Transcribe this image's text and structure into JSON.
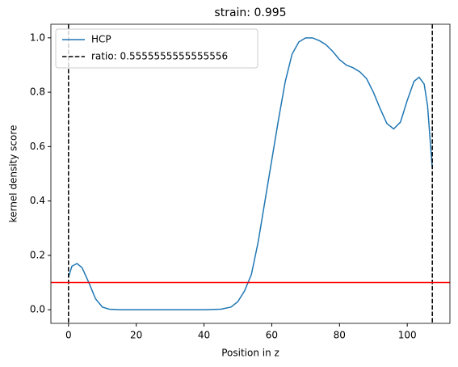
{
  "chart_data": {
    "type": "line",
    "title": "strain: 0.995",
    "x_label": "Position in z",
    "y_label": "kernel density score",
    "x": [
      0,
      1,
      2.5,
      4,
      6,
      8,
      10,
      12,
      15,
      20,
      30,
      40,
      45,
      48,
      50,
      52,
      54,
      56,
      58,
      60,
      62,
      64,
      66,
      68,
      70,
      72,
      74,
      76,
      78,
      80,
      82,
      84,
      86,
      88,
      90,
      92,
      94,
      96,
      98,
      100,
      102,
      103.5,
      105,
      106,
      107.4
    ],
    "series": [
      {
        "name": "HCP",
        "color": "#1f77b4",
        "values": [
          0.12,
          0.16,
          0.17,
          0.155,
          0.1,
          0.04,
          0.01,
          0.002,
          0,
          0,
          0,
          0,
          0.002,
          0.01,
          0.03,
          0.07,
          0.13,
          0.25,
          0.4,
          0.55,
          0.7,
          0.84,
          0.94,
          0.985,
          1.0,
          1.0,
          0.99,
          0.975,
          0.95,
          0.92,
          0.9,
          0.89,
          0.875,
          0.85,
          0.8,
          0.74,
          0.685,
          0.665,
          0.69,
          0.77,
          0.84,
          0.855,
          0.83,
          0.75,
          0.52
        ]
      }
    ],
    "vlines": {
      "name": "ratio: 0.5555555555555556",
      "color": "#000000",
      "values": [
        0,
        107.4
      ]
    },
    "hline": {
      "value": 0.1,
      "color": "#ff0000"
    },
    "xlim": [
      -5.2,
      112.6
    ],
    "ylim": [
      -0.05,
      1.05
    ],
    "xticks": [
      0,
      20,
      40,
      60,
      80,
      100
    ],
    "yticks": [
      {
        "value": 0,
        "label": "0.0"
      },
      0.2,
      0.4,
      0.6,
      0.8,
      {
        "value": 1,
        "label": "1.0"
      }
    ],
    "legend": "upper left"
  }
}
